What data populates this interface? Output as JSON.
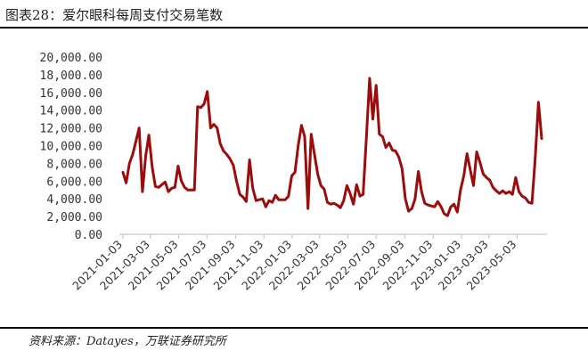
{
  "figure": {
    "title": "图表28：爱尔眼科每周支付交易笔数",
    "source": "资料来源：Datayes，万联证券研究所"
  },
  "colors": {
    "line": "#9b0d0d",
    "axis": "#c8c8c8"
  },
  "chart_data": {
    "type": "line",
    "title": "",
    "xlabel": "",
    "ylabel": "",
    "ylim": [
      0,
      20000
    ],
    "grid": false,
    "legend": "none",
    "y_ticks": [
      "0.00",
      "2,000.00",
      "4,000.00",
      "6,000.00",
      "8,000.00",
      "10,000.00",
      "12,000.00",
      "14,000.00",
      "16,000.00",
      "18,000.00",
      "20,000.00"
    ],
    "y_tick_values": [
      0,
      2000,
      4000,
      6000,
      8000,
      10000,
      12000,
      14000,
      16000,
      18000,
      20000
    ],
    "x_ticks": [
      "2021-01-03",
      "2021-03-03",
      "2021-05-03",
      "2021-07-03",
      "2021-09-03",
      "2021-11-03",
      "2022-01-03",
      "2022-03-03",
      "2022-05-03",
      "2022-07-03",
      "2022-09-03",
      "2022-11-03",
      "2023-01-03",
      "2023-03-03",
      "2023-05-03"
    ],
    "series": [
      {
        "values": [
          [
            "2021-01-03",
            7000
          ],
          [
            "2021-01-10",
            5800
          ],
          [
            "2021-01-17",
            8000
          ],
          [
            "2021-01-24",
            9000
          ],
          [
            "2021-01-31",
            10500
          ],
          [
            "2021-02-07",
            12000
          ],
          [
            "2021-02-14",
            4800
          ],
          [
            "2021-02-21",
            8800
          ],
          [
            "2021-02-28",
            11200
          ],
          [
            "2021-03-07",
            7600
          ],
          [
            "2021-03-14",
            5400
          ],
          [
            "2021-03-21",
            5300
          ],
          [
            "2021-03-28",
            5600
          ],
          [
            "2021-04-04",
            5900
          ],
          [
            "2021-04-11",
            4800
          ],
          [
            "2021-04-18",
            5200
          ],
          [
            "2021-04-25",
            5300
          ],
          [
            "2021-05-02",
            7700
          ],
          [
            "2021-05-09",
            6000
          ],
          [
            "2021-05-16",
            5300
          ],
          [
            "2021-05-23",
            5000
          ],
          [
            "2021-05-30",
            5000
          ],
          [
            "2021-06-06",
            5000
          ],
          [
            "2021-06-13",
            14400
          ],
          [
            "2021-06-20",
            14300
          ],
          [
            "2021-06-27",
            14700
          ],
          [
            "2021-07-04",
            16100
          ],
          [
            "2021-07-11",
            12000
          ],
          [
            "2021-07-18",
            12400
          ],
          [
            "2021-07-25",
            12000
          ],
          [
            "2021-08-01",
            10200
          ],
          [
            "2021-08-08",
            9400
          ],
          [
            "2021-08-15",
            9000
          ],
          [
            "2021-08-22",
            8500
          ],
          [
            "2021-08-29",
            7800
          ],
          [
            "2021-09-05",
            6000
          ],
          [
            "2021-09-12",
            4500
          ],
          [
            "2021-09-19",
            4200
          ],
          [
            "2021-09-26",
            3700
          ],
          [
            "2021-10-03",
            8400
          ],
          [
            "2021-10-10",
            5200
          ],
          [
            "2021-10-17",
            3800
          ],
          [
            "2021-10-24",
            3900
          ],
          [
            "2021-10-31",
            4000
          ],
          [
            "2021-11-07",
            3100
          ],
          [
            "2021-11-14",
            3800
          ],
          [
            "2021-11-21",
            3600
          ],
          [
            "2021-11-28",
            4400
          ],
          [
            "2021-12-05",
            3900
          ],
          [
            "2021-12-12",
            3900
          ],
          [
            "2021-12-19",
            3900
          ],
          [
            "2021-12-26",
            4300
          ],
          [
            "2022-01-02",
            6600
          ],
          [
            "2022-01-09",
            7000
          ],
          [
            "2022-01-16",
            10000
          ],
          [
            "2022-01-23",
            12300
          ],
          [
            "2022-01-30",
            11000
          ],
          [
            "2022-02-06",
            2900
          ],
          [
            "2022-02-13",
            11300
          ],
          [
            "2022-02-20",
            9000
          ],
          [
            "2022-02-27",
            6800
          ],
          [
            "2022-03-06",
            5500
          ],
          [
            "2022-03-13",
            5100
          ],
          [
            "2022-03-20",
            3600
          ],
          [
            "2022-03-27",
            3400
          ],
          [
            "2022-04-03",
            3500
          ],
          [
            "2022-04-10",
            3300
          ],
          [
            "2022-04-17",
            3000
          ],
          [
            "2022-04-24",
            3800
          ],
          [
            "2022-05-01",
            5500
          ],
          [
            "2022-05-08",
            4600
          ],
          [
            "2022-05-15",
            3400
          ],
          [
            "2022-05-22",
            5600
          ],
          [
            "2022-05-29",
            4300
          ],
          [
            "2022-06-05",
            4500
          ],
          [
            "2022-06-12",
            11000
          ],
          [
            "2022-06-19",
            17600
          ],
          [
            "2022-06-26",
            13000
          ],
          [
            "2022-07-03",
            16800
          ],
          [
            "2022-07-10",
            11300
          ],
          [
            "2022-07-17",
            11000
          ],
          [
            "2022-07-24",
            9800
          ],
          [
            "2022-07-31",
            10300
          ],
          [
            "2022-08-07",
            9500
          ],
          [
            "2022-08-14",
            9400
          ],
          [
            "2022-08-21",
            8700
          ],
          [
            "2022-08-28",
            7400
          ],
          [
            "2022-09-04",
            4000
          ],
          [
            "2022-09-11",
            2600
          ],
          [
            "2022-09-18",
            2900
          ],
          [
            "2022-09-25",
            4000
          ],
          [
            "2022-10-02",
            7100
          ],
          [
            "2022-10-09",
            4800
          ],
          [
            "2022-10-16",
            3500
          ],
          [
            "2022-10-23",
            3300
          ],
          [
            "2022-10-30",
            3200
          ],
          [
            "2022-11-06",
            3100
          ],
          [
            "2022-11-13",
            3700
          ],
          [
            "2022-11-20",
            3100
          ],
          [
            "2022-11-27",
            2300
          ],
          [
            "2022-12-04",
            2100
          ],
          [
            "2022-12-11",
            3100
          ],
          [
            "2022-12-18",
            3400
          ],
          [
            "2022-12-25",
            2500
          ],
          [
            "2023-01-01",
            5000
          ],
          [
            "2023-01-08",
            6600
          ],
          [
            "2023-01-15",
            9100
          ],
          [
            "2023-01-22",
            7300
          ],
          [
            "2023-01-29",
            5500
          ],
          [
            "2023-02-05",
            9300
          ],
          [
            "2023-02-12",
            8100
          ],
          [
            "2023-02-19",
            6800
          ],
          [
            "2023-02-26",
            6400
          ],
          [
            "2023-03-05",
            6100
          ],
          [
            "2023-03-12",
            5300
          ],
          [
            "2023-03-19",
            4900
          ],
          [
            "2023-03-26",
            4600
          ],
          [
            "2023-04-02",
            4900
          ],
          [
            "2023-04-09",
            4600
          ],
          [
            "2023-04-16",
            4800
          ],
          [
            "2023-04-23",
            4500
          ],
          [
            "2023-04-30",
            6400
          ],
          [
            "2023-05-07",
            4800
          ],
          [
            "2023-05-14",
            4300
          ],
          [
            "2023-05-21",
            4100
          ],
          [
            "2023-05-28",
            3600
          ],
          [
            "2023-06-04",
            3500
          ],
          [
            "2023-06-11",
            8500
          ],
          [
            "2023-06-18",
            14900
          ],
          [
            "2023-06-25",
            10800
          ]
        ]
      }
    ]
  }
}
